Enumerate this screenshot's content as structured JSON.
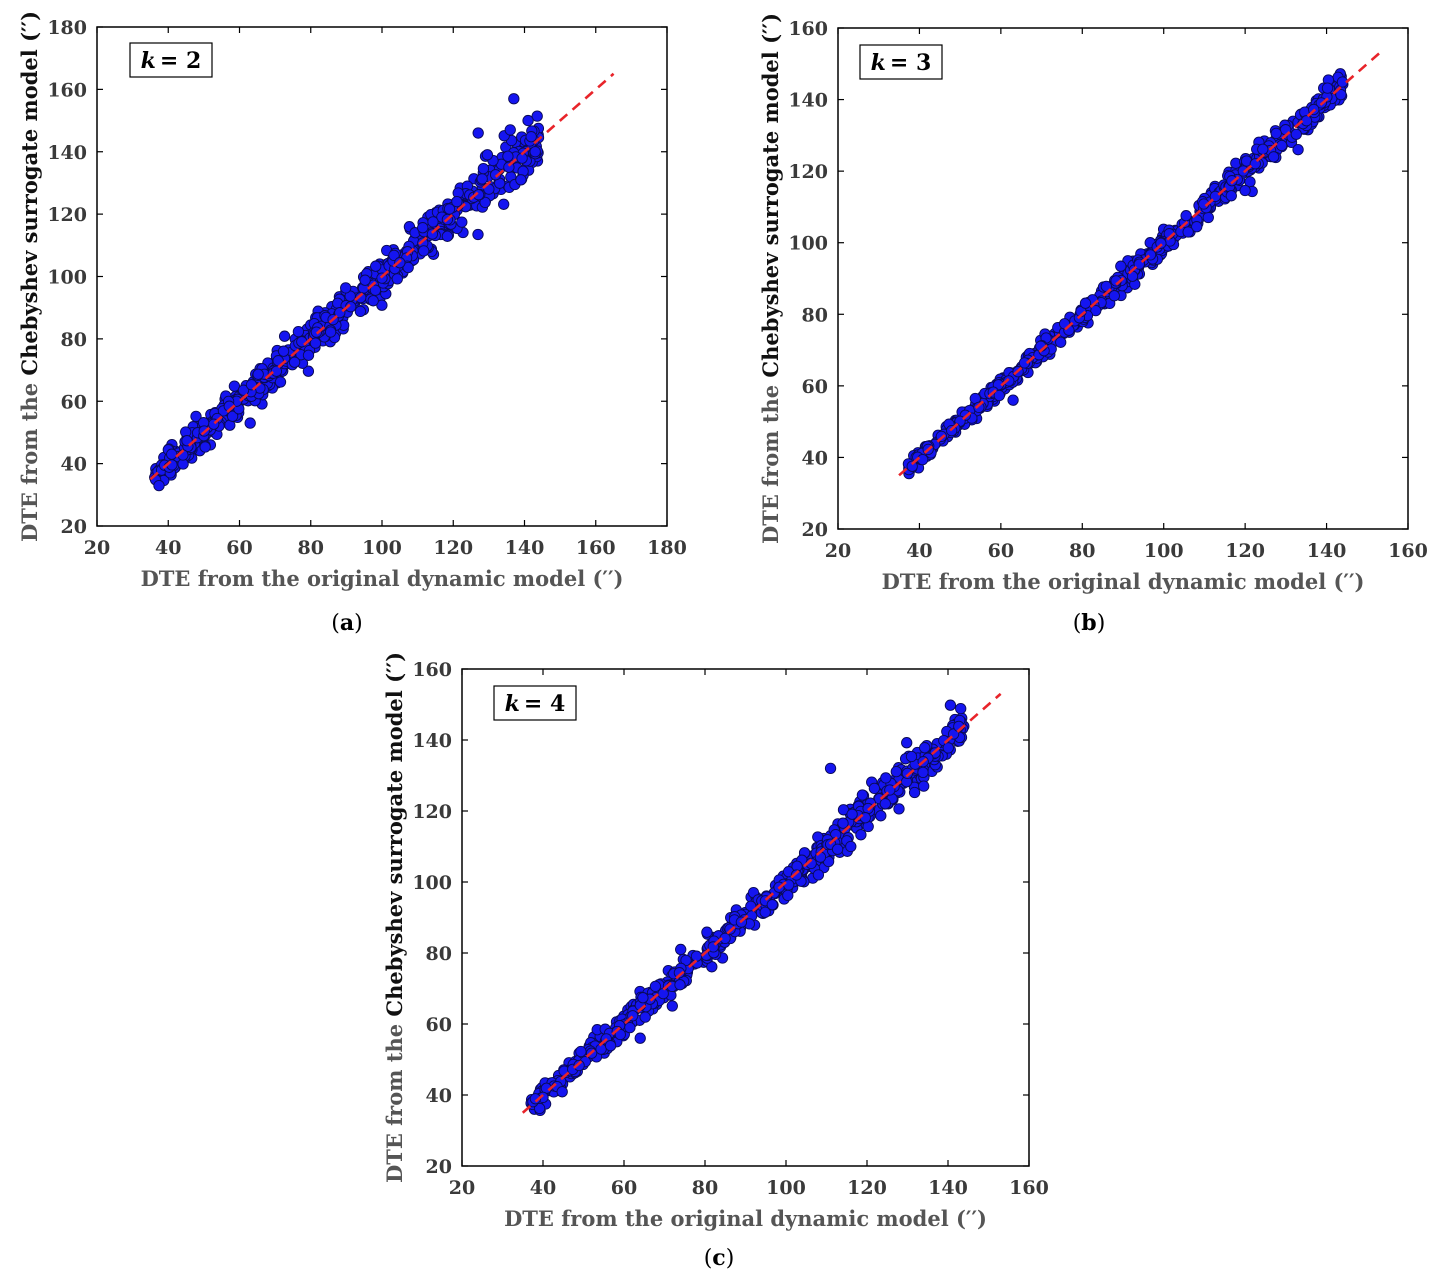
{
  "colors": {
    "points": "#1515f0",
    "point_edge": "#0a0a55",
    "fit_line": "#e8242a"
  },
  "chart_data": [
    {
      "type": "scatter",
      "panel_label": "k = 2",
      "panel_k_symbol": "k",
      "panel_k_value": "= 2",
      "caption_open": "(",
      "caption_letter": "a",
      "caption_close": ")",
      "xlabel": "DTE from the original dynamic model (′′)",
      "ylabel_gray_part": "DTE from the ",
      "ylabel_black_part": "Chebyshev surrogate model (′′)",
      "xlim": [
        20,
        180
      ],
      "ylim": [
        20,
        180
      ],
      "xticks": [
        20,
        40,
        60,
        80,
        100,
        120,
        140,
        160,
        180
      ],
      "yticks": [
        20,
        40,
        60,
        80,
        100,
        120,
        140,
        160,
        180
      ],
      "reference_line": {
        "x": [
          35,
          165
        ],
        "y": [
          35,
          165
        ]
      },
      "x_range": [
        36,
        144
      ],
      "noise": 2.0,
      "outliers": [
        [
          63,
          53
        ],
        [
          127,
          146
        ],
        [
          137,
          157
        ],
        [
          139,
          131
        ],
        [
          141,
          150
        ],
        [
          143,
          140
        ],
        [
          136,
          147
        ],
        [
          130,
          128
        ]
      ]
    },
    {
      "type": "scatter",
      "panel_label": "k = 3",
      "panel_k_symbol": "k",
      "panel_k_value": "= 3",
      "caption_open": "(",
      "caption_letter": "b",
      "caption_close": ")",
      "xlabel": "DTE from the original dynamic model (′′)",
      "ylabel_gray_part": "DTE from the ",
      "ylabel_black_part": "Chebyshev surrogate model (′′)",
      "xlim": [
        20,
        160
      ],
      "ylim": [
        20,
        160
      ],
      "xticks": [
        20,
        40,
        60,
        80,
        100,
        120,
        140,
        160
      ],
      "yticks": [
        20,
        40,
        60,
        80,
        100,
        120,
        140,
        160
      ],
      "reference_line": {
        "x": [
          35,
          153
        ],
        "y": [
          35,
          153
        ]
      },
      "x_range": [
        37,
        144
      ],
      "noise": 1.0,
      "outliers": [
        [
          63,
          56
        ],
        [
          133,
          126
        ],
        [
          127,
          124
        ],
        [
          106,
          103
        ],
        [
          94,
          94
        ]
      ]
    },
    {
      "type": "scatter",
      "panel_label": "k = 4",
      "panel_k_symbol": "k",
      "panel_k_value": "= 4",
      "caption_open": "(",
      "caption_letter": "c",
      "caption_close": ")",
      "xlabel": "DTE from the original dynamic model (′′)",
      "ylabel_gray_part": "DTE from the ",
      "ylabel_black_part": "Chebyshev surrogate model (′′)",
      "xlim": [
        20,
        160
      ],
      "ylim": [
        20,
        160
      ],
      "xticks": [
        20,
        40,
        60,
        80,
        100,
        120,
        140,
        160
      ],
      "yticks": [
        20,
        40,
        60,
        80,
        100,
        120,
        140,
        160
      ],
      "reference_line": {
        "x": [
          35,
          153
        ],
        "y": [
          35,
          153
        ]
      },
      "x_range": [
        37,
        144
      ],
      "noise": 1.4,
      "outliers": [
        [
          111,
          132
        ],
        [
          74,
          81
        ],
        [
          64,
          56
        ],
        [
          108,
          102
        ],
        [
          134,
          127
        ],
        [
          116,
          110
        ]
      ]
    }
  ]
}
